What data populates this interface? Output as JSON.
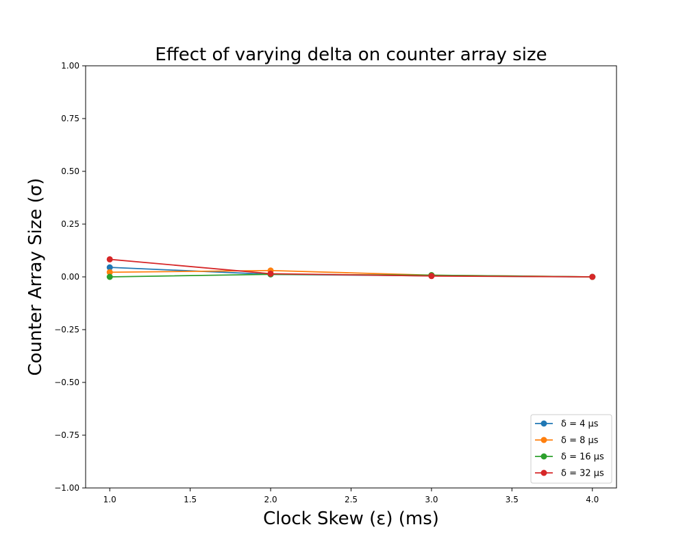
{
  "chart_data": {
    "type": "line",
    "title": "Effect of varying delta on counter array size",
    "xlabel": "Clock Skew (ε) (ms)",
    "ylabel": "Counter Array Size (σ)",
    "xlim": [
      0.85,
      4.15
    ],
    "ylim": [
      -1.0,
      1.0
    ],
    "xticks": [
      1.0,
      1.5,
      2.0,
      2.5,
      3.0,
      3.5,
      4.0
    ],
    "xtick_labels": [
      "1.0",
      "1.5",
      "2.0",
      "2.5",
      "3.0",
      "3.5",
      "4.0"
    ],
    "yticks": [
      -1.0,
      -0.75,
      -0.5,
      -0.25,
      0.0,
      0.25,
      0.5,
      0.75,
      1.0
    ],
    "ytick_labels": [
      "−1.00",
      "−0.75",
      "−0.50",
      "−0.25",
      "0.00",
      "0.25",
      "0.50",
      "0.75",
      "1.00"
    ],
    "grid": false,
    "legend_position": "lower-right",
    "x": [
      1.0,
      2.0,
      3.0,
      4.0
    ],
    "series": [
      {
        "name": "δ = 4 μs",
        "color": "#1f77b4",
        "values": [
          0.045,
          0.012,
          0.005,
          0.0
        ]
      },
      {
        "name": "δ = 8 μs",
        "color": "#ff7f0e",
        "values": [
          0.022,
          0.03,
          0.008,
          0.0
        ]
      },
      {
        "name": "δ = 16 μs",
        "color": "#2ca02c",
        "values": [
          0.0,
          0.012,
          0.008,
          0.0
        ]
      },
      {
        "name": "δ = 32 μs",
        "color": "#d62728",
        "values": [
          0.083,
          0.015,
          0.004,
          0.0
        ]
      }
    ]
  }
}
